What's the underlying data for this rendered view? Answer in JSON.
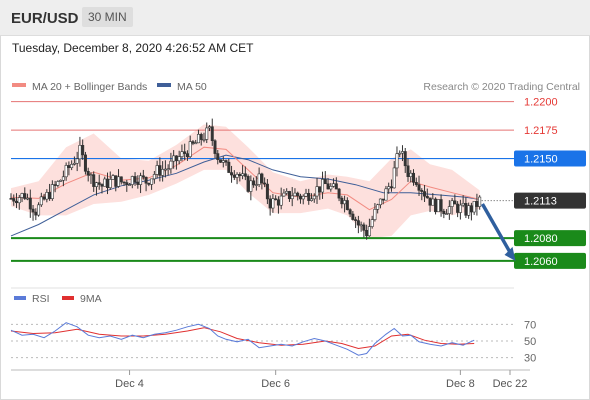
{
  "header": {
    "symbol": "EUR/USD",
    "timeframe": "30 MIN"
  },
  "timestamp": "Tuesday, December 8, 2020 4:26:52 AM CET",
  "colors": {
    "ma20": "#f28b82",
    "band": "#fde0dd",
    "ma50": "#3f5f98",
    "blue_level": "#1a73e8",
    "green_level": "#1a8a1a",
    "last_price": "#333333",
    "rsi": "#5b7bd8",
    "rsi_ma": "#e03030",
    "arrow": "#2f5f9e",
    "candle_up": "#ffffff",
    "candle_down": "#333333"
  },
  "chart_data": [
    {
      "type": "candlestick",
      "legend": [
        {
          "label": "MA 20 + Bollinger Bands",
          "color": "#f28b82"
        },
        {
          "label": "MA 50",
          "color": "#3f5f98"
        }
      ],
      "source_note": "Research © 2020 Trading Central",
      "ylim": [
        1.2045,
        1.2212
      ],
      "xlim": [
        0,
        181
      ],
      "x_ticks": [
        {
          "x": 43,
          "label": "Dec 4"
        },
        {
          "x": 96,
          "label": "Dec 6"
        },
        {
          "x": 163,
          "label": "Dec 8"
        },
        {
          "x": 181,
          "label": "Dec 22"
        }
      ],
      "levels": [
        {
          "value": 1.22,
          "label": "1.2200",
          "style": "thin-red"
        },
        {
          "value": 1.2175,
          "label": "1.2175",
          "style": "thin-red"
        },
        {
          "value": 1.215,
          "label": "1.2150",
          "style": "blue"
        },
        {
          "value": 1.208,
          "label": "1.2080",
          "style": "green"
        },
        {
          "value": 1.206,
          "label": "1.2060",
          "style": "green"
        }
      ],
      "last_price": {
        "value": 1.2113,
        "label": "1.2113"
      },
      "close_path": [
        [
          0,
          1.2115
        ],
        [
          5,
          1.2118
        ],
        [
          9,
          1.2104
        ],
        [
          13,
          1.2117
        ],
        [
          17,
          1.2128
        ],
        [
          21,
          1.2142
        ],
        [
          25,
          1.2156
        ],
        [
          29,
          1.2133
        ],
        [
          33,
          1.2126
        ],
        [
          37,
          1.2131
        ],
        [
          41,
          1.2129
        ],
        [
          45,
          1.2134
        ],
        [
          49,
          1.213
        ],
        [
          53,
          1.2139
        ],
        [
          57,
          1.2142
        ],
        [
          61,
          1.2151
        ],
        [
          65,
          1.2159
        ],
        [
          69,
          1.2168
        ],
        [
          72,
          1.2174
        ],
        [
          75,
          1.2152
        ],
        [
          78,
          1.2142
        ],
        [
          82,
          1.2138
        ],
        [
          86,
          1.2126
        ],
        [
          90,
          1.2133
        ],
        [
          94,
          1.2111
        ],
        [
          98,
          1.2114
        ],
        [
          102,
          1.2119
        ],
        [
          106,
          1.2116
        ],
        [
          110,
          1.2122
        ],
        [
          114,
          1.2127
        ],
        [
          118,
          1.2121
        ],
        [
          122,
          1.211
        ],
        [
          126,
          1.2092
        ],
        [
          129,
          1.2085
        ],
        [
          132,
          1.2102
        ],
        [
          135,
          1.2116
        ],
        [
          138,
          1.213
        ],
        [
          141,
          1.2158
        ],
        [
          144,
          1.2138
        ],
        [
          147,
          1.2132
        ],
        [
          150,
          1.212
        ],
        [
          153,
          1.211
        ],
        [
          157,
          1.2106
        ],
        [
          161,
          1.2108
        ],
        [
          165,
          1.2104
        ],
        [
          168,
          1.2107
        ],
        [
          170,
          1.2113
        ]
      ],
      "ma20_path": [
        [
          0,
          1.2116
        ],
        [
          10,
          1.2115
        ],
        [
          20,
          1.2128
        ],
        [
          30,
          1.2138
        ],
        [
          40,
          1.2131
        ],
        [
          50,
          1.2133
        ],
        [
          60,
          1.2144
        ],
        [
          70,
          1.216
        ],
        [
          78,
          1.2158
        ],
        [
          86,
          1.214
        ],
        [
          95,
          1.212
        ],
        [
          105,
          1.2116
        ],
        [
          115,
          1.212
        ],
        [
          122,
          1.2118
        ],
        [
          130,
          1.2105
        ],
        [
          138,
          1.2114
        ],
        [
          145,
          1.213
        ],
        [
          152,
          1.2125
        ],
        [
          160,
          1.212
        ],
        [
          170,
          1.2114
        ]
      ],
      "band_upper": [
        [
          0,
          1.2124
        ],
        [
          10,
          1.213
        ],
        [
          20,
          1.216
        ],
        [
          30,
          1.2172
        ],
        [
          40,
          1.215
        ],
        [
          50,
          1.2148
        ],
        [
          60,
          1.2162
        ],
        [
          70,
          1.218
        ],
        [
          78,
          1.2178
        ],
        [
          86,
          1.216
        ],
        [
          95,
          1.2138
        ],
        [
          105,
          1.213
        ],
        [
          115,
          1.2136
        ],
        [
          122,
          1.2134
        ],
        [
          130,
          1.213
        ],
        [
          138,
          1.215
        ],
        [
          145,
          1.2158
        ],
        [
          152,
          1.2145
        ],
        [
          160,
          1.214
        ],
        [
          170,
          1.2122
        ]
      ],
      "band_lower": [
        [
          0,
          1.2108
        ],
        [
          10,
          1.21
        ],
        [
          20,
          1.21
        ],
        [
          30,
          1.211
        ],
        [
          40,
          1.2112
        ],
        [
          50,
          1.2118
        ],
        [
          60,
          1.2128
        ],
        [
          70,
          1.214
        ],
        [
          78,
          1.214
        ],
        [
          86,
          1.212
        ],
        [
          95,
          1.2102
        ],
        [
          105,
          1.2102
        ],
        [
          115,
          1.2106
        ],
        [
          122,
          1.21
        ],
        [
          130,
          1.208
        ],
        [
          138,
          1.2082
        ],
        [
          145,
          1.21
        ],
        [
          152,
          1.2104
        ],
        [
          160,
          1.21
        ],
        [
          170,
          1.2106
        ]
      ],
      "ma50_path": [
        [
          0,
          1.2082
        ],
        [
          10,
          1.2092
        ],
        [
          20,
          1.2105
        ],
        [
          30,
          1.2118
        ],
        [
          40,
          1.2126
        ],
        [
          50,
          1.2131
        ],
        [
          60,
          1.2137
        ],
        [
          70,
          1.2147
        ],
        [
          78,
          1.2153
        ],
        [
          86,
          1.2149
        ],
        [
          95,
          1.214
        ],
        [
          105,
          1.2134
        ],
        [
          115,
          1.2132
        ],
        [
          125,
          1.2127
        ],
        [
          135,
          1.212
        ],
        [
          145,
          1.212
        ],
        [
          155,
          1.2118
        ],
        [
          165,
          1.2116
        ],
        [
          170,
          1.2114
        ]
      ],
      "forecast_arrow": {
        "from": [
          171,
          1.211
        ],
        "to": [
          183,
          1.206
        ]
      }
    },
    {
      "type": "line",
      "legend": [
        {
          "label": "RSI",
          "color": "#5b7bd8"
        },
        {
          "label": "9MA",
          "color": "#e03030"
        }
      ],
      "ylim": [
        20,
        80
      ],
      "y_ticks": [
        {
          "value": 70,
          "label": "70"
        },
        {
          "value": 50,
          "label": "50"
        },
        {
          "value": 30,
          "label": "30"
        }
      ],
      "series": [
        {
          "name": "RSI",
          "points": [
            [
              0,
              63
            ],
            [
              4,
              57
            ],
            [
              8,
              58
            ],
            [
              12,
              54
            ],
            [
              16,
              62
            ],
            [
              20,
              72
            ],
            [
              24,
              67
            ],
            [
              28,
              57
            ],
            [
              32,
              54
            ],
            [
              36,
              56
            ],
            [
              40,
              52
            ],
            [
              44,
              57
            ],
            [
              48,
              54
            ],
            [
              52,
              58
            ],
            [
              56,
              60
            ],
            [
              60,
              63
            ],
            [
              64,
              67
            ],
            [
              68,
              70
            ],
            [
              72,
              65
            ],
            [
              75,
              56
            ],
            [
              78,
              52
            ],
            [
              82,
              49
            ],
            [
              86,
              52
            ],
            [
              90,
              42
            ],
            [
              94,
              44
            ],
            [
              98,
              46
            ],
            [
              102,
              44
            ],
            [
              106,
              49
            ],
            [
              110,
              53
            ],
            [
              114,
              50
            ],
            [
              118,
              45
            ],
            [
              122,
              40
            ],
            [
              126,
              33
            ],
            [
              129,
              35
            ],
            [
              132,
              47
            ],
            [
              136,
              58
            ],
            [
              139,
              65
            ],
            [
              142,
              56
            ],
            [
              145,
              57
            ],
            [
              148,
              49
            ],
            [
              152,
              46
            ],
            [
              156,
              44
            ],
            [
              160,
              48
            ],
            [
              164,
              45
            ],
            [
              168,
              51
            ]
          ]
        },
        {
          "name": "9MA",
          "points": [
            [
              0,
              62
            ],
            [
              8,
              59
            ],
            [
              16,
              60
            ],
            [
              24,
              64
            ],
            [
              32,
              58
            ],
            [
              40,
              56
            ],
            [
              48,
              56
            ],
            [
              56,
              58
            ],
            [
              64,
              62
            ],
            [
              70,
              66
            ],
            [
              76,
              61
            ],
            [
              82,
              53
            ],
            [
              90,
              48
            ],
            [
              98,
              45
            ],
            [
              106,
              46
            ],
            [
              114,
              50
            ],
            [
              120,
              47
            ],
            [
              126,
              41
            ],
            [
              132,
              44
            ],
            [
              138,
              56
            ],
            [
              144,
              58
            ],
            [
              150,
              51
            ],
            [
              156,
              47
            ],
            [
              162,
              46
            ],
            [
              168,
              47
            ]
          ]
        }
      ]
    }
  ]
}
